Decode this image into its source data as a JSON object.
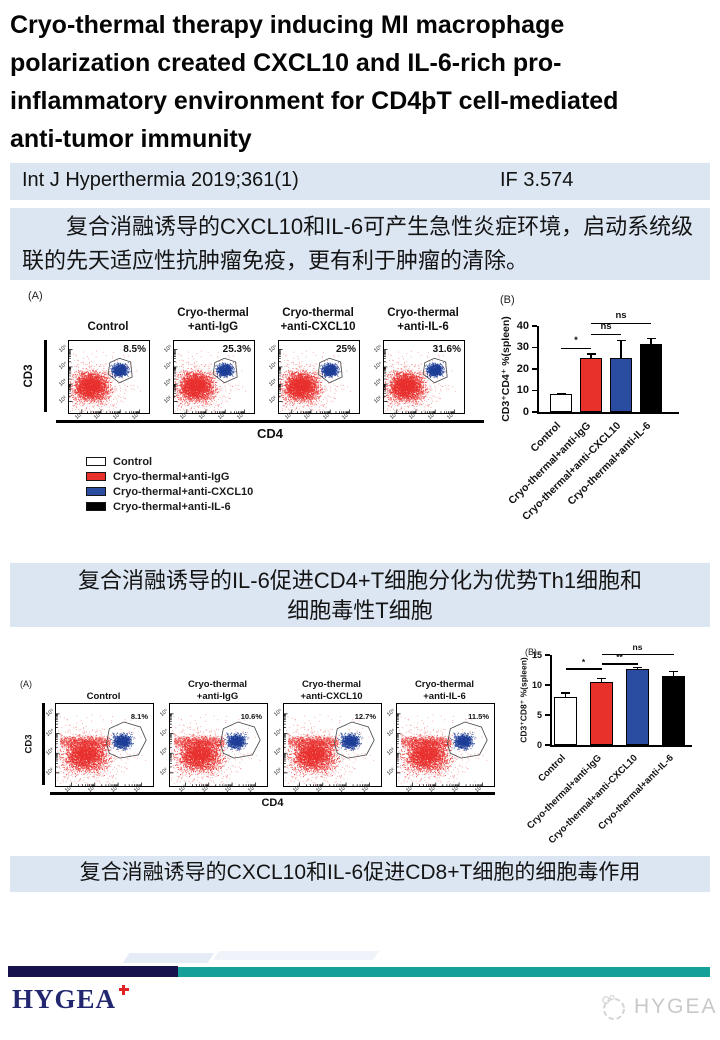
{
  "title_lines": [
    "Cryo-thermal therapy inducing MI macrophage",
    "polarization created CXCL10 and IL-6-rich pro-",
    "inflammatory environment for CD4þT cell-mediated",
    "anti-tumor immunity"
  ],
  "journal": {
    "citation": "Int J Hyperthermia 2019;361(1)",
    "impact_factor": "IF 3.574"
  },
  "highlights": {
    "h1": "复合消融诱导的CXCL10和IL-6可产生急性炎症环境，启动系统级联的先天适应性抗肿瘤免疫，更有利于肿瘤的清除。",
    "h2_line1": "复合消融诱导的IL-6促进CD4+T细胞分化为优势Th1细胞和",
    "h2_line2": "细胞毒性T细胞",
    "h3": "复合消融诱导的CXCL10和IL-6促进CD8+T细胞的细胞毒作用"
  },
  "figure1": {
    "legend": [
      {
        "label": "Control",
        "color": "#ffffff"
      },
      {
        "label": "Cryo-thermal+anti-IgG",
        "color": "#e8312b"
      },
      {
        "label": "Cryo-thermal+anti-CXCL10",
        "color": "#2b4da1"
      },
      {
        "label": "Cryo-thermal+anti-IL-6",
        "color": "#000000"
      }
    ]
  },
  "chart_data": [
    {
      "type": "scatter",
      "subtype": "flow-cytometry",
      "panel_label": "(A)",
      "xlabel": "CD4",
      "ylabel": "CD3",
      "x_ticks": [
        "10²",
        "10³",
        "10⁴",
        "10⁵"
      ],
      "y_ticks": [
        "10²",
        "10³",
        "10⁴",
        "10⁵"
      ],
      "plots": [
        {
          "title_lines": [
            "Control"
          ],
          "gate_percent": "8.5%"
        },
        {
          "title_lines": [
            "Cryo-thermal",
            "+anti-IgG"
          ],
          "gate_percent": "25.3%"
        },
        {
          "title_lines": [
            "Cryo-thermal",
            "+anti-CXCL10"
          ],
          "gate_percent": "25%"
        },
        {
          "title_lines": [
            "Cryo-thermal",
            "+anti-IL-6"
          ],
          "gate_percent": "31.6%"
        }
      ],
      "colors": {
        "negative_population": "#e8302e",
        "gated_population": "#1f3f98"
      },
      "gate_polygon": [
        [
          0.49,
          0.46
        ],
        [
          0.51,
          0.3
        ],
        [
          0.63,
          0.24
        ],
        [
          0.77,
          0.29
        ],
        [
          0.79,
          0.5
        ],
        [
          0.63,
          0.58
        ]
      ],
      "red_center": [
        0.27,
        0.63
      ],
      "blue_center": [
        0.635,
        0.4
      ],
      "red_streak": false
    },
    {
      "type": "bar",
      "panel_label": "(B)",
      "ylabel": "CD3⁺CD4⁺ %(spleen)",
      "categories": [
        "Control",
        "Cryo-thermal+anti-IgG",
        "Cryo-thermal+anti-CXCL10",
        "Cryo-thermal+anti-IL-6"
      ],
      "values": [
        8.5,
        25.3,
        25,
        31.6
      ],
      "errors": [
        0.4,
        2,
        8.5,
        3
      ],
      "bar_colors": [
        "#ffffff",
        "#e8312b",
        "#2b4da1",
        "#000000"
      ],
      "ylim": [
        0,
        40
      ],
      "yticks": [
        0,
        10,
        20,
        30,
        40
      ],
      "significance": [
        {
          "from": 0,
          "to": 1,
          "label": "*",
          "y": 30
        },
        {
          "from": 1,
          "to": 2,
          "label": "ns",
          "y": 36.5
        },
        {
          "from": 1,
          "to": 3,
          "label": "ns",
          "y": 41.5
        }
      ]
    },
    {
      "type": "scatter",
      "subtype": "flow-cytometry",
      "panel_label": "(A)",
      "xlabel": "CD4",
      "ylabel": "CD3",
      "x_ticks": [
        "10²",
        "10³",
        "10⁴",
        "10⁵"
      ],
      "y_ticks": [
        "10²",
        "10³",
        "10⁴",
        "10⁵"
      ],
      "plots": [
        {
          "title_lines": [
            "Control"
          ],
          "gate_percent": "8.1%"
        },
        {
          "title_lines": [
            "Cryo-thermal",
            "+anti-IgG"
          ],
          "gate_percent": "10.6%"
        },
        {
          "title_lines": [
            "Cryo-thermal",
            "+anti-CXCL10"
          ],
          "gate_percent": "12.7%"
        },
        {
          "title_lines": [
            "Cryo-thermal",
            "+anti-IL-6"
          ],
          "gate_percent": "11.5%"
        }
      ],
      "colors": {
        "negative_population": "#e8302e",
        "gated_population": "#1f3f98"
      },
      "gate_polygon": [
        [
          0.52,
          0.48
        ],
        [
          0.55,
          0.3
        ],
        [
          0.7,
          0.22
        ],
        [
          0.87,
          0.28
        ],
        [
          0.93,
          0.44
        ],
        [
          0.85,
          0.62
        ],
        [
          0.66,
          0.66
        ],
        [
          0.55,
          0.6
        ]
      ],
      "red_center": [
        0.3,
        0.62
      ],
      "blue_center": [
        0.68,
        0.45
      ],
      "red_streak": true
    },
    {
      "type": "bar",
      "panel_label": "(B)",
      "ylabel": "CD3⁺CD8⁺ %(spleen)",
      "categories": [
        "Control",
        "Cryo-thermal+anti-IgG",
        "Cryo-thermal+anti-CXCL10",
        "Cryo-thermal+anti-IL-6"
      ],
      "values": [
        8,
        10.5,
        12.7,
        11.5
      ],
      "errors": [
        0.8,
        0.7,
        0.35,
        0.9
      ],
      "bar_colors": [
        "#ffffff",
        "#e8312b",
        "#2b4da1",
        "#000000"
      ],
      "ylim": [
        0,
        15
      ],
      "yticks": [
        0,
        5,
        10,
        15
      ],
      "significance": [
        {
          "from": 0,
          "to": 1,
          "label": "*",
          "y": 12.8
        },
        {
          "from": 1,
          "to": 2,
          "label": "**",
          "y": 13.6
        },
        {
          "from": 1,
          "to": 3,
          "label": "ns",
          "y": 15.2
        }
      ]
    }
  ],
  "footer": {
    "logo_text": "HYGEA",
    "watermark_text": "HYGEA"
  }
}
